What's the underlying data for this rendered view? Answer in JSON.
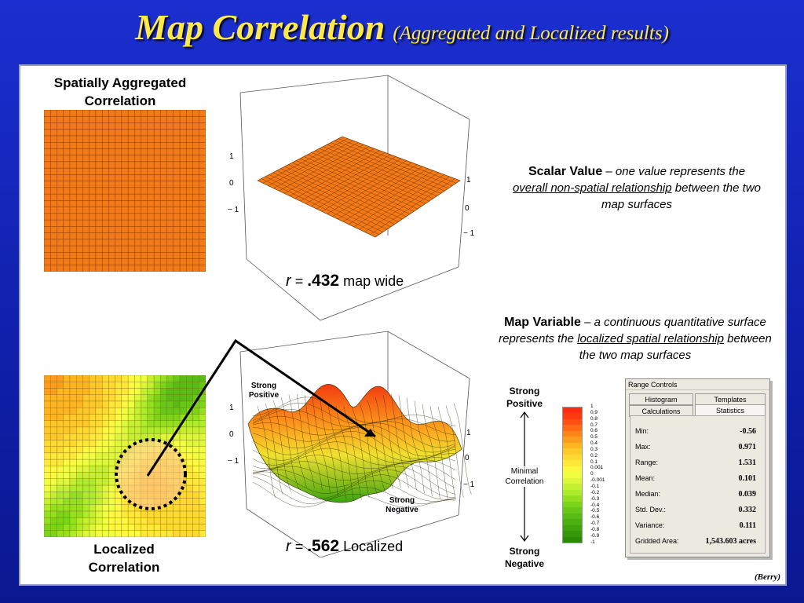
{
  "title": {
    "main": "Map Correlation",
    "sub": "(Aggregated and Localized results)"
  },
  "aggregated": {
    "label_line1": "Spatially Aggregated",
    "label_line2": "Correlation",
    "grid_color": "#f47a18",
    "r_symbol": "r",
    "r_equals": "=",
    "r_value": ".432",
    "r_suffix": "map wide",
    "axis_ticks_left": [
      "1",
      "0",
      "− 1"
    ],
    "axis_ticks_right": [
      "1",
      "0",
      "− 1"
    ]
  },
  "scalar_desc": {
    "heading": "Scalar Value",
    "dash": " – ",
    "text1": "one value represents the",
    "underlined": "overall non-spatial relationship",
    "text2": " between the two map surfaces"
  },
  "variable_desc": {
    "heading": "Map Variable",
    "dash": " – ",
    "text1": "a continuous quantitative surface represents the ",
    "underlined": "localized spatial relationship",
    "text2": " between the two map surfaces"
  },
  "localized": {
    "label_line1": "Localized",
    "label_line2": "Correlation",
    "r_symbol": "r",
    "r_equals": "=",
    "r_value": ".562",
    "r_suffix": "Localized",
    "strong_positive": [
      "Strong",
      "Positive"
    ],
    "strong_negative": [
      "Strong",
      "Negative"
    ],
    "axis_ticks_left": [
      "1",
      "0",
      "− 1"
    ],
    "axis_ticks_right": [
      "1",
      "0",
      "− 1"
    ]
  },
  "legend": {
    "top_label": [
      "Strong",
      "Positive"
    ],
    "middle_label": [
      "Minimal",
      "Correlation"
    ],
    "bottom_label": [
      "Strong",
      "Negative"
    ],
    "ticks": [
      "1",
      "0.9",
      "0.8",
      "0.7",
      "0.6",
      "0.5",
      "0.4",
      "0.3",
      "0.2",
      "0.1",
      "0.001",
      "0",
      "-0.001",
      "-0.1",
      "-0.2",
      "-0.3",
      "-0.4",
      "-0.5",
      "-0.6",
      "-0.7",
      "-0.8",
      "-0.9",
      "-1"
    ],
    "colors": [
      "#ff2a10",
      "#ff3a10",
      "#ff5012",
      "#ff6a16",
      "#ff8418",
      "#ff9c1c",
      "#ffb420",
      "#ffc828",
      "#ffd830",
      "#ffe838",
      "#fff840",
      "#f0ff40",
      "#dcf838",
      "#c4f030",
      "#acec28",
      "#94e020",
      "#7cd418",
      "#68c818",
      "#58bc14",
      "#4cb010",
      "#40a40c",
      "#349808",
      "#2a8c06"
    ]
  },
  "range_controls": {
    "window_title": "Range Controls",
    "tabs": [
      "Histogram",
      "Templates",
      "Calculations",
      "Statistics"
    ],
    "stats": [
      {
        "key": "Min:",
        "value": "-0.56"
      },
      {
        "key": "Max:",
        "value": "0.971"
      },
      {
        "key": "Range:",
        "value": "1.531"
      },
      {
        "key": "Mean:",
        "value": "0.101"
      },
      {
        "key": "Median:",
        "value": "0.039"
      },
      {
        "key": "Std. Dev.:",
        "value": "0.332"
      },
      {
        "key": "Variance:",
        "value": "0.111"
      },
      {
        "key": "Gridded Area:",
        "value": "1,543.603 acres"
      }
    ]
  },
  "credit": "(Berry)"
}
